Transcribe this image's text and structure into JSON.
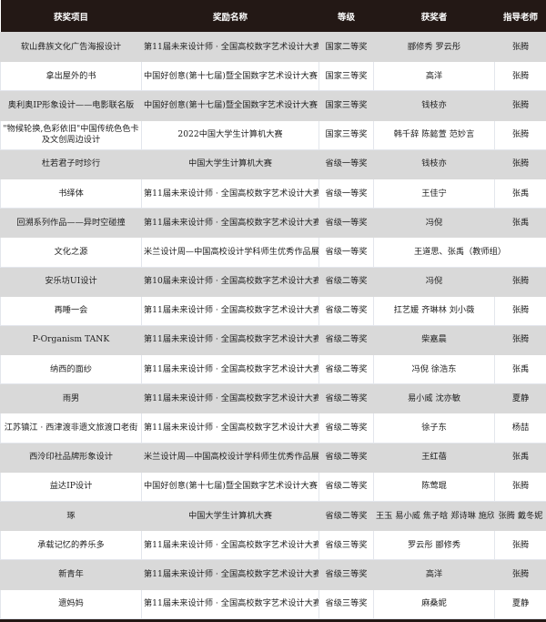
{
  "headers": [
    "获奖项目",
    "奖励名称",
    "等级",
    "获奖者",
    "指导老师"
  ],
  "rows": [
    {
      "project": "软山彝族文化广告海报设计",
      "award": "第11届未来设计师 · 全国高校数字艺术设计大赛",
      "level": "国家二等奖",
      "winners": "郦修秀 罗云彤",
      "teacher": "张腾"
    },
    {
      "project": "拿出屋外的书",
      "award": "中国好创意(第十七届)暨全国数字艺术设计大赛",
      "level": "国家三等奖",
      "winners": "高洋",
      "teacher": "张腾"
    },
    {
      "project": "奥利奥IP形象设计——电影联名版",
      "award": "中国好创意(第十七届)暨全国数字艺术设计大赛",
      "level": "国家三等奖",
      "winners": "钱枝亦",
      "teacher": "张腾"
    },
    {
      "project": "\"物候轮换,色彩依旧\"中国传统色色卡及文创周边设计",
      "award": "2022中国大学生计算机大赛",
      "level": "国家三等奖",
      "winners": "韩千辞 陈懿萱 范妙言",
      "teacher": "张腾"
    },
    {
      "project": "杜若君子时珍行",
      "award": "中国大学生计算机大赛",
      "level": "省级一等奖",
      "winners": "钱枝亦",
      "teacher": "张腾"
    },
    {
      "project": "书绎体",
      "award": "第11届未来设计师 · 全国高校数字艺术设计大赛",
      "level": "省级一等奖",
      "winners": "王佳宁",
      "teacher": "张禹"
    },
    {
      "project": "回溯系列作品——异时空碰撞",
      "award": "第11届未来设计师 · 全国高校数字艺术设计大赛",
      "level": "省级一等奖",
      "winners": "冯倪",
      "teacher": "张禹"
    },
    {
      "project": "文化之源",
      "award": "米兰设计周—中国高校设计学科师生优秀作品展",
      "level": "省级一等奖",
      "winners": "王道思、张禹（教师组）",
      "teacher": ""
    },
    {
      "project": "安乐坊UI设计",
      "award": "第10届未来设计师 · 全国高校数字艺术设计大赛",
      "level": "省级二等奖",
      "winners": "冯倪",
      "teacher": "张腾"
    },
    {
      "project": "再睡一会",
      "award": "第11届未来设计师 · 全国高校数字艺术设计大赛",
      "level": "省级二等奖",
      "winners": "扛艺媛 齐琳林 刘小薇",
      "teacher": "张腾"
    },
    {
      "project": "P-Organism TANK",
      "award": "第11届未来设计师 · 全国高校数字艺术设计大赛",
      "level": "省级二等奖",
      "winners": "柴嘉晨",
      "teacher": "张腾"
    },
    {
      "project": "纳西的面纱",
      "award": "第11届未来设计师 · 全国高校数字艺术设计大赛",
      "level": "省级二等奖",
      "winners": "冯倪 徐浩东",
      "teacher": "张禹"
    },
    {
      "project": "雨男",
      "award": "第11届未来设计师 · 全国高校数字艺术设计大赛",
      "level": "省级二等奖",
      "winners": "易小威 沈亦敏",
      "teacher": "夏静"
    },
    {
      "project": "江苏镇江 · 西津渡非遗文旅渡口老街",
      "award": "第11届未来设计师 · 全国高校数字艺术设计大赛",
      "level": "省级二等奖",
      "winners": "徐子东",
      "teacher": "杨喆"
    },
    {
      "project": "西泠印社品牌形象设计",
      "award": "米兰设计周—中国高校设计学科师生优秀作品展",
      "level": "省级二等奖",
      "winners": "王红蓓",
      "teacher": "张禹"
    },
    {
      "project": "益达IP设计",
      "award": "中国好创意(第十七届)暨全国数字艺术设计大赛",
      "level": "省级二等奖",
      "winners": "陈莺琨",
      "teacher": "张腾"
    },
    {
      "project": "琢",
      "award": "中国大学生计算机大赛",
      "level": "省级二等奖",
      "winners": "王玉 易小威 焦子晗 郑诗琳 施欣宁",
      "teacher": "张腾 戴冬妮"
    },
    {
      "project": "承载记忆的养乐多",
      "award": "第11届未来设计师 · 全国高校数字艺术设计大赛",
      "level": "省级三等奖",
      "winners": "罗云彤 郦修秀",
      "teacher": "张腾"
    },
    {
      "project": "新青年",
      "award": "第11届未来设计师 · 全国高校数字艺术设计大赛",
      "level": "省级三等奖",
      "winners": "高洋",
      "teacher": "张腾"
    },
    {
      "project": "遗妈妈",
      "award": "第11届未来设计师 · 全国高校数字艺术设计大赛",
      "level": "省级三等奖",
      "winners": "麻桑妮",
      "teacher": "夏静"
    }
  ],
  "colors": {
    "header_bg": "#231815",
    "row_gray": "#d9d9d9",
    "row_white": "#ffffff"
  }
}
